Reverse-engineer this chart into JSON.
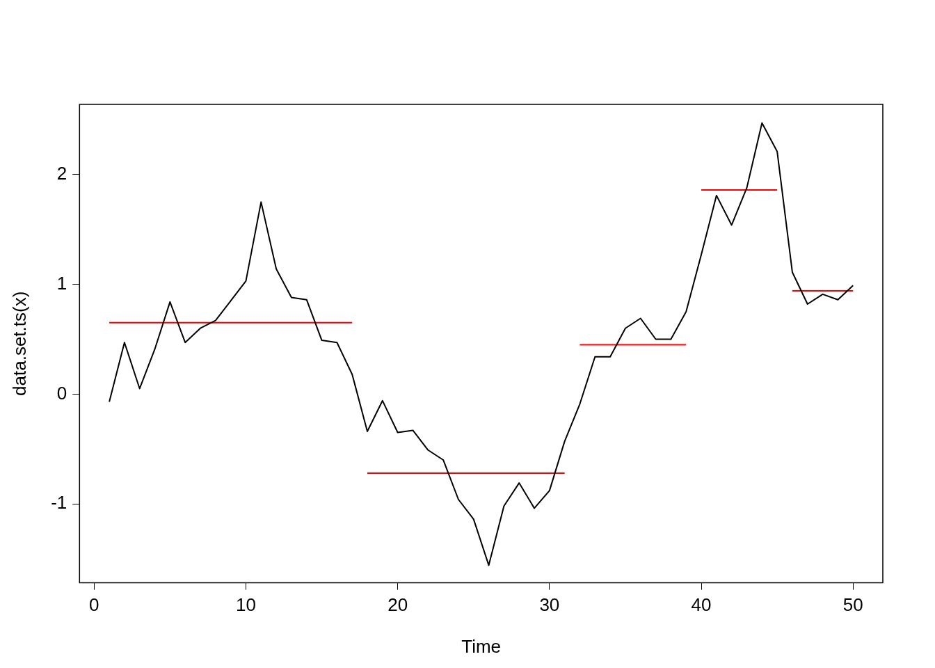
{
  "chart_data": {
    "type": "line",
    "xlabel": "Time",
    "ylabel": "data.set.ts(x)",
    "x": [
      1,
      2,
      3,
      4,
      5,
      6,
      7,
      8,
      9,
      10,
      11,
      12,
      13,
      14,
      15,
      16,
      17,
      18,
      19,
      20,
      21,
      22,
      23,
      24,
      25,
      26,
      27,
      28,
      29,
      30,
      31,
      32,
      33,
      34,
      35,
      36,
      37,
      38,
      39,
      40,
      41,
      42,
      43,
      44,
      45,
      46,
      47,
      48,
      49,
      50
    ],
    "series": [
      {
        "color": "#000000",
        "values": [
          -0.07,
          0.47,
          0.05,
          0.41,
          0.84,
          0.47,
          0.6,
          0.67,
          0.85,
          1.03,
          1.75,
          1.14,
          0.88,
          0.86,
          0.49,
          0.47,
          0.18,
          -0.34,
          -0.06,
          -0.35,
          -0.33,
          -0.51,
          -0.6,
          -0.96,
          -1.14,
          -1.56,
          -1.02,
          -0.81,
          -1.04,
          -0.88,
          -0.43,
          -0.09,
          0.34,
          0.34,
          0.6,
          0.69,
          0.5,
          0.5,
          0.75,
          1.27,
          1.81,
          1.54,
          1.88,
          2.47,
          2.21,
          1.11,
          0.82,
          0.91,
          0.86,
          0.99
        ]
      },
      {
        "color": "#ff0000",
        "x": [
          1,
          17
        ],
        "values": [
          0.65,
          0.65
        ]
      },
      {
        "color": "#ff0000",
        "x": [
          18,
          31
        ],
        "values": [
          -0.72,
          -0.72
        ]
      },
      {
        "color": "#ff0000",
        "x": [
          32,
          39
        ],
        "values": [
          0.45,
          0.45
        ]
      },
      {
        "color": "#ff0000",
        "x": [
          40,
          45
        ],
        "values": [
          1.86,
          1.86
        ]
      },
      {
        "color": "#ff0000",
        "x": [
          46,
          50
        ],
        "values": [
          0.94,
          0.94
        ]
      }
    ],
    "xlim": [
      -0.96,
      51.96
    ],
    "xticks": [
      0,
      10,
      20,
      30,
      40,
      50
    ],
    "ylim": [
      -1.72,
      2.64
    ],
    "yticks": [
      -1,
      0,
      1,
      2
    ],
    "grid": false,
    "legend": false,
    "marker": "none",
    "line_style": "solid"
  }
}
